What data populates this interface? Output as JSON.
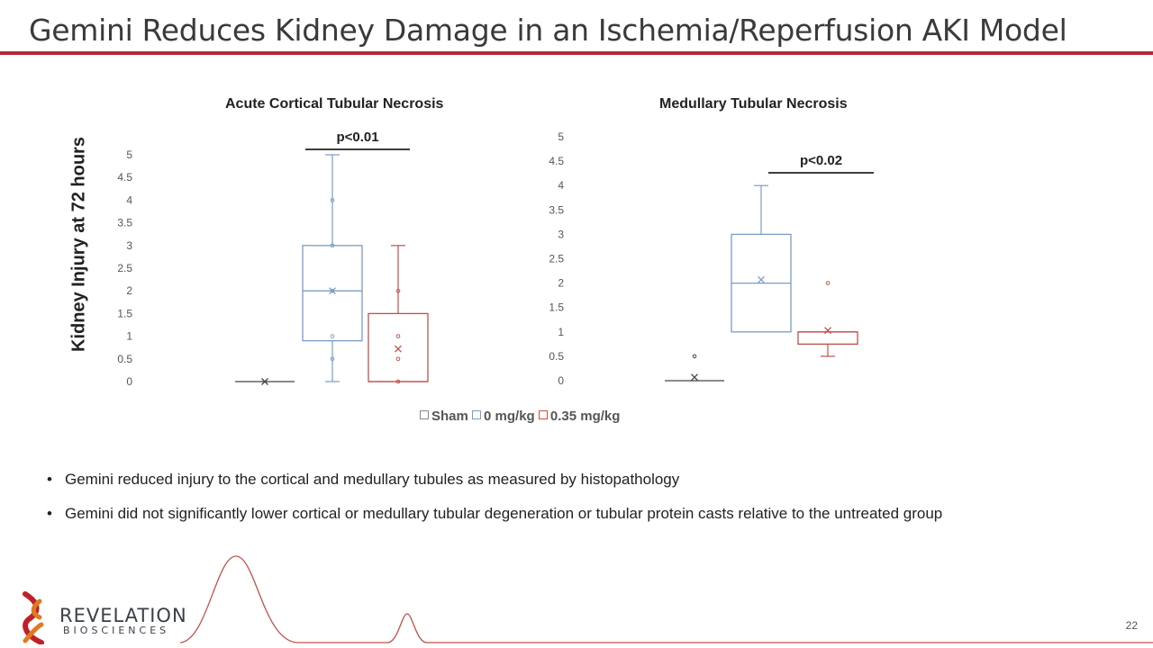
{
  "slide": {
    "title": "Gemini Reduces Kidney Damage in an Ischemia/Reperfusion AKI Model",
    "page_number": "22",
    "y_axis_label": "Kidney Injury at 72 hours",
    "bullets": [
      "Gemini reduced injury to the cortical and medullary tubules as measured by histopathology",
      "Gemini did not significantly lower cortical or medullary tubular degeneration or tubular protein casts relative to the untreated group"
    ],
    "logo": {
      "line1": "REVELATION",
      "line2": "BIOSCIENCES"
    },
    "colors": {
      "accent": "#b22a35",
      "sham": "#444444",
      "dose0": "#7a9cc6",
      "dose035": "#c0504d"
    }
  },
  "legend": [
    {
      "label": "Sham",
      "color": "#888888"
    },
    {
      "label": "0 mg/kg",
      "color": "#7a9cc6"
    },
    {
      "label": "0.35 mg/kg",
      "color": "#c0504d"
    }
  ],
  "chart_data": [
    {
      "type": "box",
      "title": "Acute Cortical Tubular Necrosis",
      "ylim": [
        0,
        5
      ],
      "yticks": [
        "0",
        "0.5",
        "1",
        "1.5",
        "2",
        "2.5",
        "3",
        "3.5",
        "4",
        "4.5",
        "5"
      ],
      "annotation": "p<0.01",
      "series": [
        {
          "name": "Sham",
          "min": 0,
          "q1": 0,
          "median": 0,
          "q3": 0,
          "max": 0,
          "mean": 0,
          "points": []
        },
        {
          "name": "0 mg/kg",
          "min": 0,
          "q1": 0.9,
          "median": 2,
          "q3": 3,
          "max": 5,
          "mean": 2,
          "points": [
            0.5,
            1,
            2,
            3,
            4
          ]
        },
        {
          "name": "0.35 mg/kg",
          "min": 0,
          "q1": 0,
          "median": 0,
          "q3": 1.5,
          "max": 3,
          "mean": 0.72,
          "points": [
            0,
            0.5,
            1,
            2
          ]
        }
      ]
    },
    {
      "type": "box",
      "title": "Medullary Tubular Necrosis",
      "ylim": [
        0,
        5
      ],
      "yticks": [
        "0",
        "0.5",
        "1",
        "1.5",
        "2",
        "2.5",
        "3",
        "3.5",
        "4",
        "4.5",
        "5"
      ],
      "annotation": "p<0.02",
      "series": [
        {
          "name": "Sham",
          "min": 0,
          "q1": 0,
          "median": 0,
          "q3": 0,
          "max": 0,
          "mean": 0.07,
          "points": [
            0.5
          ]
        },
        {
          "name": "0 mg/kg",
          "min": 1,
          "q1": 1,
          "median": 2,
          "q3": 3,
          "max": 4,
          "mean": 2.07,
          "points": []
        },
        {
          "name": "0.35 mg/kg",
          "min": 0.5,
          "q1": 0.75,
          "median": 1,
          "q3": 1,
          "max": 1,
          "mean": 1.03,
          "points": [
            2
          ]
        }
      ]
    }
  ]
}
